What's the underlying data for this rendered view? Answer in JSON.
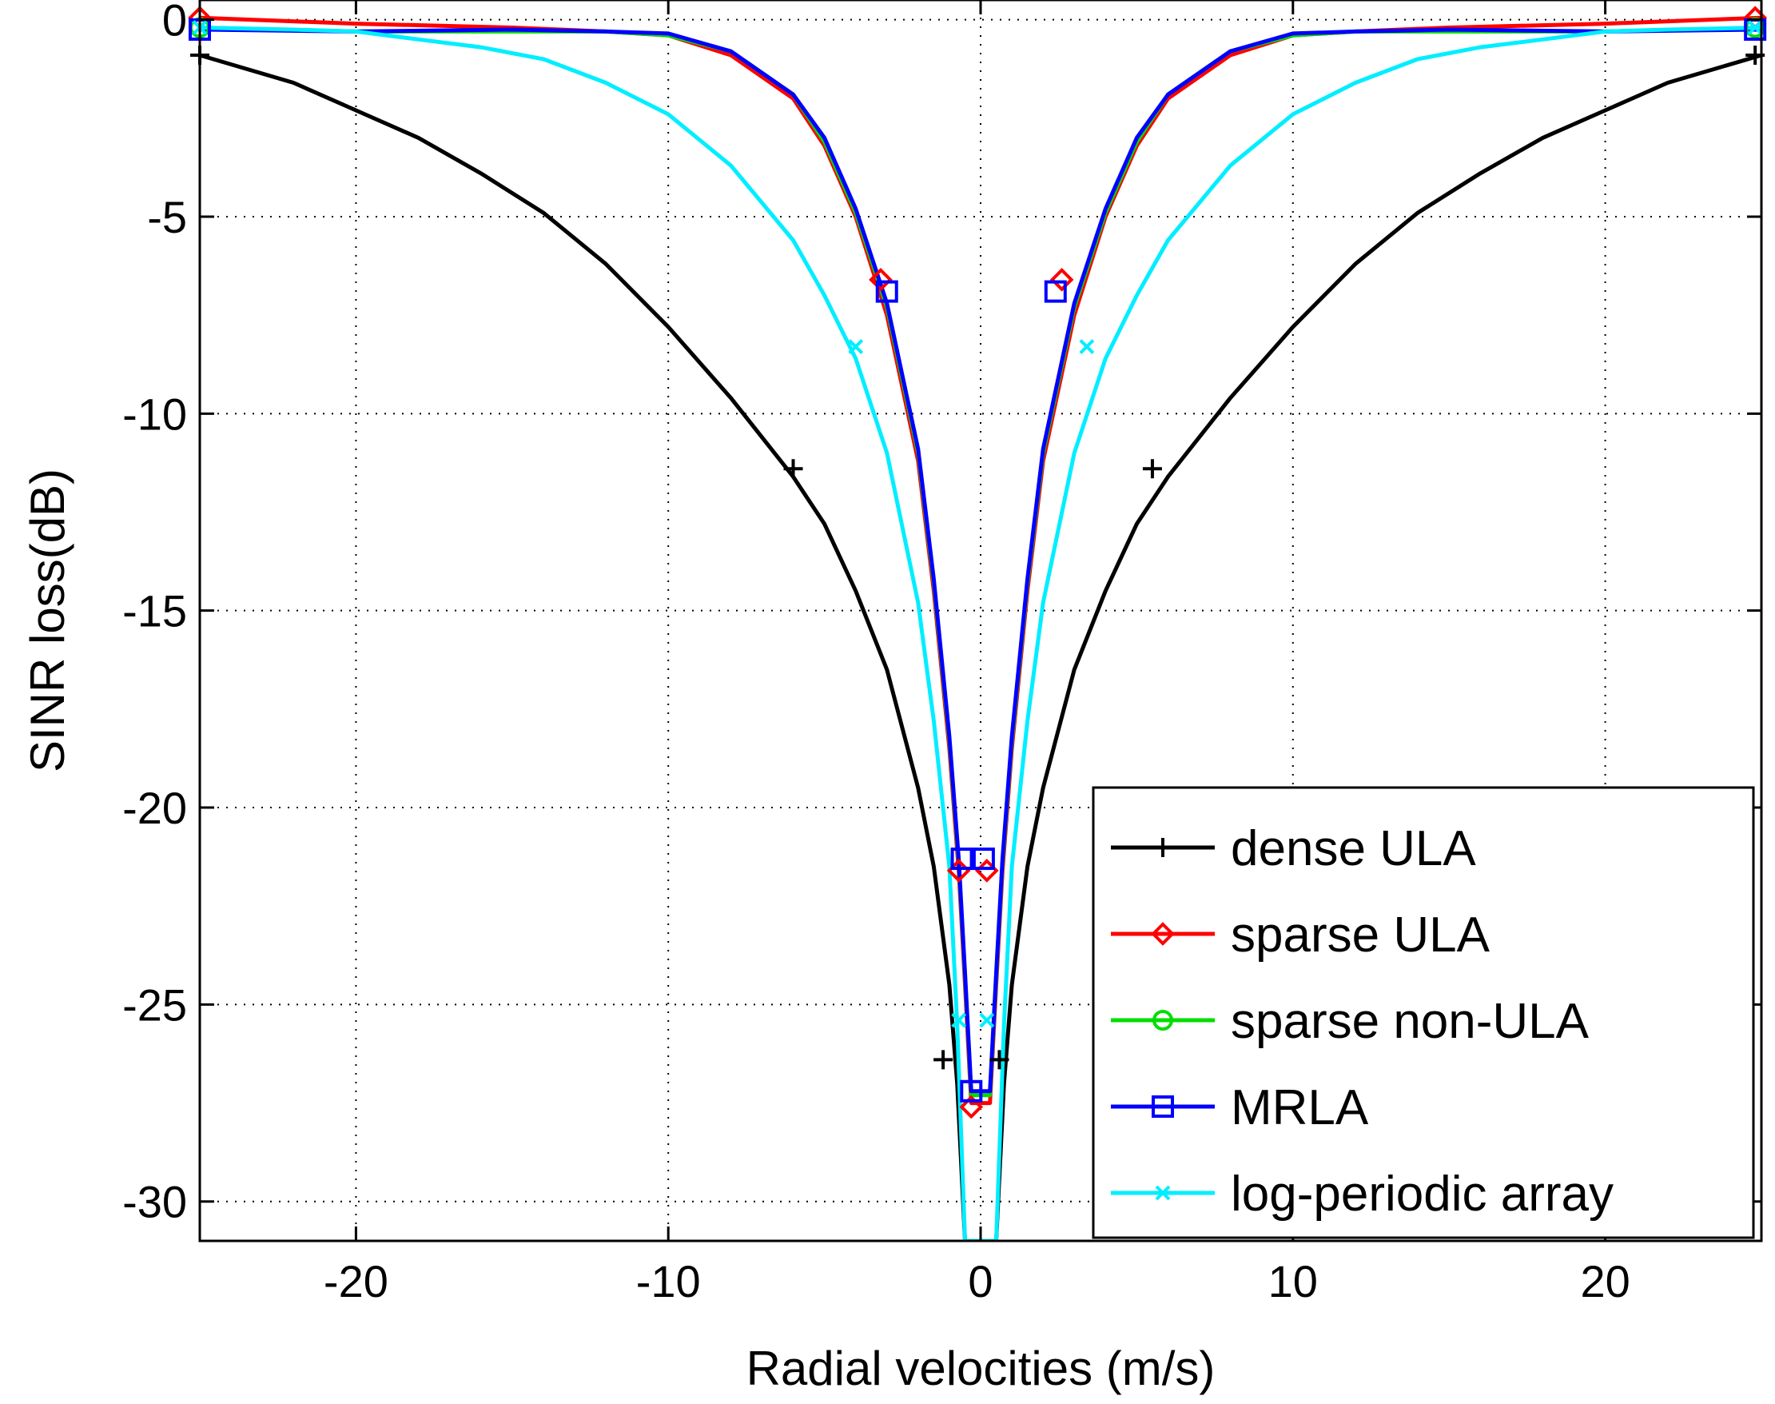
{
  "chart_data": {
    "type": "line",
    "title": "",
    "xlabel": "Radial velocities (m/s)",
    "ylabel": "SINR loss(dB)",
    "xlim": [
      -25,
      25
    ],
    "ylim": [
      -31,
      0.5
    ],
    "grid": true,
    "legend_position": "bottom-right",
    "xticks": [
      -20,
      -10,
      0,
      10,
      20
    ],
    "xtick_labels": [
      "-20",
      "-10",
      "0",
      "10",
      "20"
    ],
    "yticks": [
      0,
      -5,
      -10,
      -15,
      -20,
      -25,
      -30
    ],
    "ytick_labels": [
      "0",
      "-5",
      "-10",
      "-15",
      "-20",
      "-25",
      "-30"
    ],
    "series": [
      {
        "name": "dense ULA",
        "color": "#000000",
        "marker": "plus",
        "x": [
          -25,
          -22,
          -20,
          -18,
          -16,
          -14,
          -12,
          -10,
          -8,
          -6,
          -5,
          -4,
          -3,
          -2,
          -1.5,
          -1,
          -0.75,
          -0.5,
          0.5,
          0.75,
          1,
          1.5,
          2,
          3,
          4,
          5,
          6,
          8,
          10,
          12,
          14,
          16,
          18,
          20,
          22,
          25
        ],
        "y": [
          -0.9,
          -1.6,
          -2.3,
          -3,
          -3.9,
          -4.9,
          -6.2,
          -7.8,
          -9.6,
          -11.6,
          -12.8,
          -14.5,
          -16.5,
          -19.5,
          -21.5,
          -24.5,
          -27,
          -31,
          -31,
          -27,
          -24.5,
          -21.5,
          -19.5,
          -16.5,
          -14.5,
          -12.8,
          -11.6,
          -9.6,
          -7.8,
          -6.2,
          -4.9,
          -3.9,
          -3,
          -2.3,
          -1.6,
          -0.9
        ],
        "marker_x": [
          -25,
          -6,
          -1.2,
          0.6,
          5.5,
          24.8
        ],
        "marker_y": [
          -0.9,
          -11.4,
          -26.4,
          -26.4,
          -11.4,
          -0.9
        ]
      },
      {
        "name": "sparse ULA",
        "color": "#ff0000",
        "marker": "diamond",
        "x": [
          -25,
          -20,
          -15,
          -12,
          -10,
          -8,
          -6,
          -5,
          -4,
          -3,
          -2,
          -1.5,
          -1,
          -0.7,
          -0.5,
          -0.3,
          0.3,
          0.5,
          0.7,
          1,
          1.5,
          2,
          3,
          4,
          5,
          6,
          8,
          10,
          12,
          15,
          20,
          25
        ],
        "y": [
          0.05,
          -0.1,
          -0.2,
          -0.3,
          -0.4,
          -0.9,
          -2,
          -3.2,
          -5,
          -7.5,
          -11.2,
          -14.5,
          -18.5,
          -21.6,
          -24.5,
          -27.5,
          -27.5,
          -24.5,
          -21.6,
          -18.5,
          -14.5,
          -11.2,
          -7.5,
          -5,
          -3.2,
          -2,
          -0.9,
          -0.4,
          -0.3,
          -0.2,
          -0.1,
          0.05
        ],
        "marker_x": [
          -25,
          -3.2,
          -0.7,
          -0.3,
          0.2,
          2.6,
          24.8
        ],
        "marker_y": [
          0.05,
          -6.6,
          -21.6,
          -27.6,
          -21.6,
          -6.6,
          0.05
        ]
      },
      {
        "name": "sparse non-ULA",
        "color": "#00dd00",
        "marker": "circle",
        "x": [
          -25,
          -20,
          -15,
          -12,
          -10,
          -8,
          -6,
          -5,
          -4,
          -3,
          -2,
          -1.5,
          -1,
          -0.7,
          -0.5,
          -0.3,
          0.3,
          0.5,
          0.7,
          1,
          1.5,
          2,
          3,
          4,
          5,
          6,
          8,
          10,
          12,
          15,
          20,
          25
        ],
        "y": [
          -0.2,
          -0.3,
          -0.3,
          -0.3,
          -0.4,
          -0.8,
          -1.9,
          -3.1,
          -4.9,
          -7.3,
          -11,
          -14.3,
          -18.3,
          -21.4,
          -24.3,
          -27.3,
          -27.3,
          -24.3,
          -21.4,
          -18.3,
          -14.3,
          -11,
          -7.3,
          -4.9,
          -3.1,
          -1.9,
          -0.8,
          -0.4,
          -0.3,
          -0.3,
          -0.3,
          -0.2
        ],
        "marker_x": [
          -25,
          24.8
        ],
        "marker_y": [
          -0.2,
          -0.2
        ]
      },
      {
        "name": "MRLA",
        "color": "#0000ff",
        "marker": "square",
        "x": [
          -25,
          -20,
          -15,
          -12,
          -10,
          -8,
          -6,
          -5,
          -4,
          -3,
          -2,
          -1.5,
          -1,
          -0.7,
          -0.5,
          -0.3,
          0.3,
          0.5,
          0.7,
          1,
          1.5,
          2,
          3,
          4,
          5,
          6,
          8,
          10,
          12,
          15,
          20,
          25
        ],
        "y": [
          -0.25,
          -0.3,
          -0.25,
          -0.3,
          -0.35,
          -0.8,
          -1.9,
          -3,
          -4.8,
          -7.2,
          -10.9,
          -14.2,
          -18.2,
          -21.3,
          -24.2,
          -27.2,
          -27.2,
          -24.2,
          -21.3,
          -18.2,
          -14.2,
          -10.9,
          -7.2,
          -4.8,
          -3,
          -1.9,
          -0.8,
          -0.35,
          -0.3,
          -0.25,
          -0.3,
          -0.25
        ],
        "marker_x": [
          -25,
          -3,
          -0.6,
          -0.3,
          0.1,
          2.4,
          24.8
        ],
        "marker_y": [
          -0.25,
          -6.9,
          -21.3,
          -27.2,
          -21.3,
          -6.9,
          -0.25
        ]
      },
      {
        "name": "log-periodic array",
        "color": "#00eeff",
        "marker": "cross",
        "x": [
          -25,
          -22,
          -20,
          -18,
          -16,
          -14,
          -12,
          -10,
          -8,
          -6,
          -5,
          -4,
          -3,
          -2,
          -1.5,
          -1,
          -0.75,
          -0.5,
          0.5,
          0.75,
          1,
          1.5,
          2,
          3,
          4,
          5,
          6,
          8,
          10,
          12,
          14,
          16,
          18,
          20,
          22,
          25
        ],
        "y": [
          -0.2,
          -0.25,
          -0.3,
          -0.5,
          -0.7,
          -1,
          -1.6,
          -2.4,
          -3.7,
          -5.6,
          -7,
          -8.6,
          -11,
          -14.8,
          -17.8,
          -21.5,
          -25.5,
          -31,
          -31,
          -25.5,
          -21.5,
          -17.8,
          -14.8,
          -11,
          -8.6,
          -7,
          -5.6,
          -3.7,
          -2.4,
          -1.6,
          -1,
          -0.7,
          -0.5,
          -0.3,
          -0.25,
          -0.2
        ],
        "marker_x": [
          -25,
          -4,
          -0.7,
          0.2,
          3.4,
          24.8
        ],
        "marker_y": [
          -0.2,
          -8.3,
          -25.4,
          -25.4,
          -8.3,
          -0.2
        ]
      }
    ]
  }
}
